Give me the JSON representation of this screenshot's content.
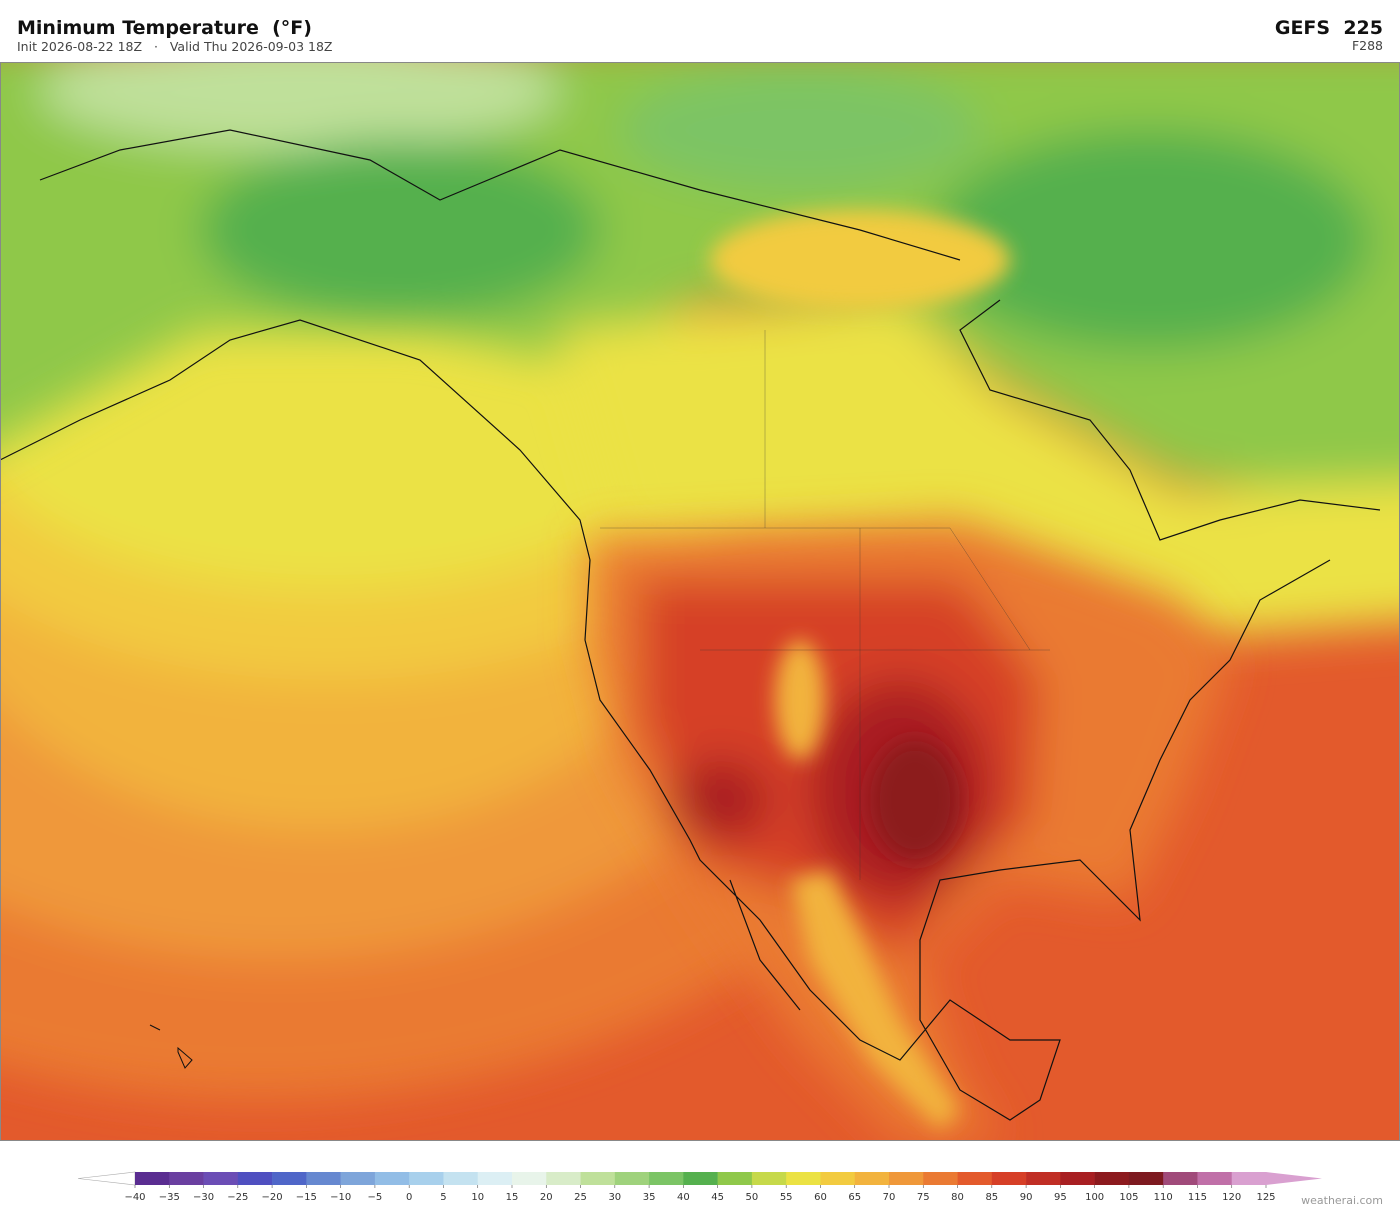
{
  "header": {
    "title": "Minimum Temperature  (°F)",
    "subtitle": "Init 2026-08-22 18Z   ·   Valid Thu 2026-09-03 18Z",
    "model": "GEFS  225",
    "forecast_hour": "F288"
  },
  "colorbar": {
    "ticks": [
      {
        "value": -40,
        "label": "−40"
      },
      {
        "value": -35,
        "label": "−35"
      },
      {
        "value": -30,
        "label": "−30"
      },
      {
        "value": -25,
        "label": "−25"
      },
      {
        "value": -20,
        "label": "−20"
      },
      {
        "value": -15,
        "label": "−15"
      },
      {
        "value": -10,
        "label": "−10"
      },
      {
        "value": -5,
        "label": "−5"
      },
      0,
      5,
      10,
      15,
      20,
      25,
      30,
      35,
      40,
      45,
      50,
      55,
      60,
      65,
      70,
      75,
      80,
      85,
      90,
      95,
      100,
      105,
      110,
      115,
      120,
      125
    ],
    "colors": [
      "#5a2d91",
      "#6a3fa0",
      "#6b4db5",
      "#4f4fc0",
      "#4f66c8",
      "#6688d0",
      "#7ea5da",
      "#92bde6",
      "#a8d0ec",
      "#c4e2f0",
      "#dceff4",
      "#e8f4ea",
      "#d8ecc8",
      "#bfe09a",
      "#9fd27c",
      "#7bc465",
      "#55b04e",
      "#8fc84a",
      "#c6d94a",
      "#ebe244",
      "#f2cb40",
      "#f2b33e",
      "#ef983a",
      "#ea7a33",
      "#e35a2c",
      "#d63f27",
      "#c02e25",
      "#a81f22",
      "#8c1a1e",
      "#7d1a20",
      "#a04a7a",
      "#c070a8",
      "#d9a0d0"
    ]
  },
  "footer": {
    "credit": "weatherai.com"
  }
}
